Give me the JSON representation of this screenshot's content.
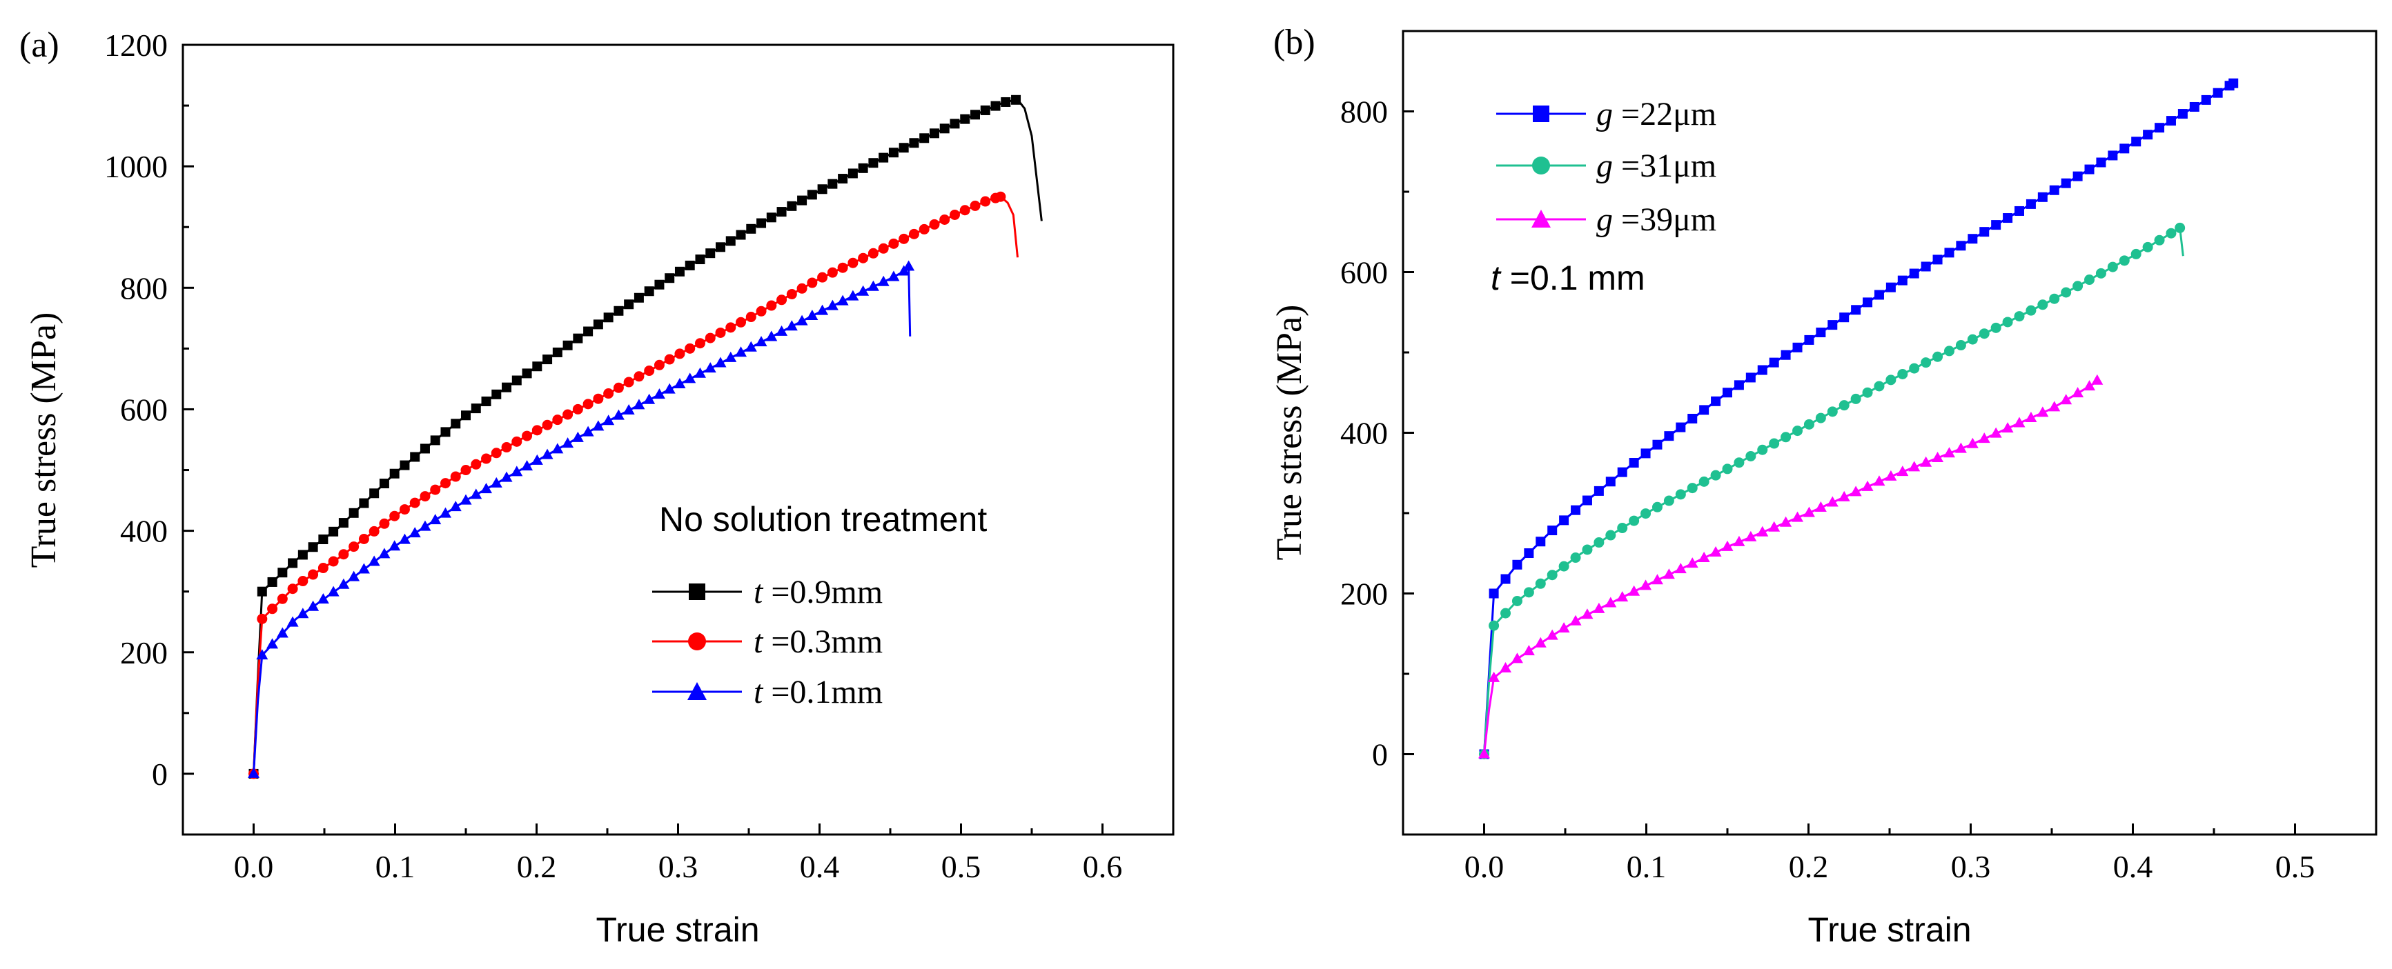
{
  "figure": {
    "panels": [
      {
        "panel_label": "(a)",
        "legend_title": "No solution treatment",
        "legend": [
          {
            "prefix": "t",
            "rest": " =0.9mm"
          },
          {
            "prefix": "t",
            "rest": " =0.3mm"
          },
          {
            "prefix": "t",
            "rest": " =0.1mm"
          }
        ]
      },
      {
        "panel_label": "(b)",
        "legend": [
          {
            "prefix": "g",
            "rest": " =22μm"
          },
          {
            "prefix": "g",
            "rest": " =31μm"
          },
          {
            "prefix": "g",
            "rest": " =39μm"
          }
        ],
        "note": {
          "prefix": "t",
          "rest": " =0.1 mm"
        }
      }
    ]
  },
  "chart_data": [
    {
      "type": "line",
      "panel": "(a)",
      "xlabel": "True strain",
      "ylabel": "True stress (MPa)",
      "xlim": [
        -0.05,
        0.65
      ],
      "ylim": [
        -100,
        1200
      ],
      "x_ticks": [
        "0.0",
        "0.1",
        "0.2",
        "0.3",
        "0.4",
        "0.5",
        "0.6"
      ],
      "y_ticks": [
        "0",
        "200",
        "400",
        "600",
        "800",
        "1000",
        "1200"
      ],
      "grid": false,
      "legend_position": "bottom-right",
      "series": [
        {
          "name": "t =0.9mm",
          "color": "#000000",
          "marker": "square",
          "points": [
            [
              0,
              0
            ],
            [
              0.003,
              160
            ],
            [
              0.006,
              300
            ],
            [
              0.03,
              352
            ],
            [
              0.06,
              405
            ],
            [
              0.1,
              495
            ],
            [
              0.15,
              590
            ],
            [
              0.2,
              670
            ],
            [
              0.25,
              750
            ],
            [
              0.3,
              825
            ],
            [
              0.35,
              895
            ],
            [
              0.4,
              960
            ],
            [
              0.45,
              1020
            ],
            [
              0.5,
              1075
            ],
            [
              0.53,
              1105
            ],
            [
              0.54,
              1110
            ],
            [
              0.545,
              1095
            ],
            [
              0.55,
              1050
            ],
            [
              0.557,
              910
            ]
          ]
        },
        {
          "name": "t =0.3mm",
          "color": "#ff0000",
          "marker": "circle",
          "points": [
            [
              0,
              0
            ],
            [
              0.003,
              150
            ],
            [
              0.006,
              255
            ],
            [
              0.03,
              310
            ],
            [
              0.06,
              355
            ],
            [
              0.1,
              425
            ],
            [
              0.15,
              500
            ],
            [
              0.2,
              565
            ],
            [
              0.25,
              625
            ],
            [
              0.3,
              690
            ],
            [
              0.35,
              750
            ],
            [
              0.4,
              815
            ],
            [
              0.45,
              870
            ],
            [
              0.5,
              925
            ],
            [
              0.52,
              945
            ],
            [
              0.528,
              950
            ],
            [
              0.533,
              940
            ],
            [
              0.537,
              920
            ],
            [
              0.54,
              850
            ]
          ]
        },
        {
          "name": "t =0.1mm",
          "color": "#0000ff",
          "marker": "triangle",
          "points": [
            [
              0,
              0
            ],
            [
              0.003,
              120
            ],
            [
              0.006,
              195
            ],
            [
              0.03,
              255
            ],
            [
              0.06,
              305
            ],
            [
              0.1,
              375
            ],
            [
              0.15,
              450
            ],
            [
              0.2,
              515
            ],
            [
              0.25,
              580
            ],
            [
              0.3,
              640
            ],
            [
              0.35,
              700
            ],
            [
              0.4,
              760
            ],
            [
              0.45,
              815
            ],
            [
              0.462,
              830
            ],
            [
              0.463,
              835
            ],
            [
              0.464,
              720
            ]
          ]
        }
      ]
    },
    {
      "type": "line",
      "panel": "(b)",
      "xlabel": "True strain",
      "ylabel": "True stress (MPa)",
      "xlim": [
        -0.05,
        0.55
      ],
      "ylim": [
        -100,
        900
      ],
      "x_ticks": [
        "0.0",
        "0.1",
        "0.2",
        "0.3",
        "0.4",
        "0.5"
      ],
      "y_ticks": [
        "0",
        "200",
        "400",
        "600",
        "800"
      ],
      "grid": false,
      "legend_position": "top-left",
      "series": [
        {
          "name": "g =22μm",
          "color": "#0000ff",
          "marker": "square",
          "points": [
            [
              0,
              0
            ],
            [
              0.003,
              100
            ],
            [
              0.006,
              200
            ],
            [
              0.02,
              235
            ],
            [
              0.04,
              275
            ],
            [
              0.06,
              310
            ],
            [
              0.1,
              375
            ],
            [
              0.15,
              450
            ],
            [
              0.2,
              515
            ],
            [
              0.25,
              580
            ],
            [
              0.3,
              640
            ],
            [
              0.35,
              700
            ],
            [
              0.4,
              760
            ],
            [
              0.45,
              820
            ],
            [
              0.462,
              835
            ]
          ]
        },
        {
          "name": "g =31μm",
          "color": "#1fc091",
          "marker": "circle",
          "points": [
            [
              0,
              0
            ],
            [
              0.003,
              90
            ],
            [
              0.006,
              160
            ],
            [
              0.02,
              190
            ],
            [
              0.04,
              220
            ],
            [
              0.06,
              250
            ],
            [
              0.1,
              300
            ],
            [
              0.15,
              355
            ],
            [
              0.2,
              410
            ],
            [
              0.25,
              465
            ],
            [
              0.3,
              515
            ],
            [
              0.35,
              565
            ],
            [
              0.4,
              620
            ],
            [
              0.425,
              650
            ],
            [
              0.429,
              655
            ],
            [
              0.431,
              620
            ]
          ]
        },
        {
          "name": "g =39μm",
          "color": "#ff00ff",
          "marker": "triangle",
          "points": [
            [
              0,
              0
            ],
            [
              0.003,
              55
            ],
            [
              0.006,
              95
            ],
            [
              0.02,
              118
            ],
            [
              0.04,
              145
            ],
            [
              0.06,
              170
            ],
            [
              0.1,
              210
            ],
            [
              0.15,
              258
            ],
            [
              0.2,
              300
            ],
            [
              0.25,
              345
            ],
            [
              0.3,
              385
            ],
            [
              0.35,
              430
            ],
            [
              0.375,
              460
            ],
            [
              0.378,
              465
            ]
          ]
        }
      ]
    }
  ]
}
